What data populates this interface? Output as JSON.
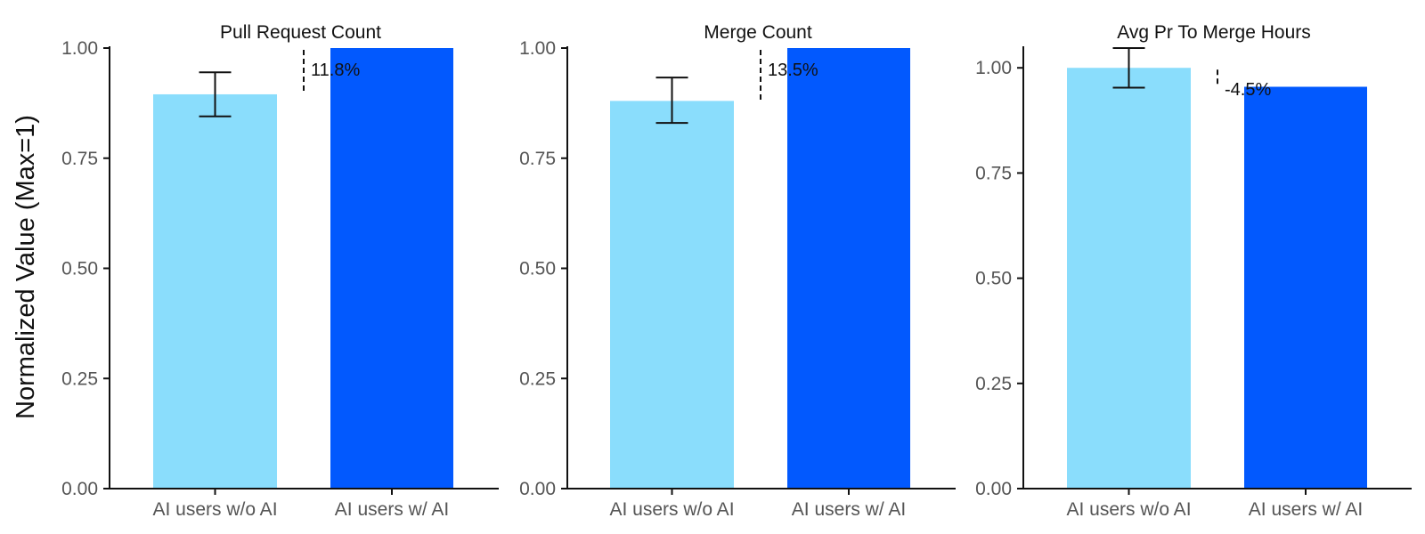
{
  "figure": {
    "ylabel": "Normalized Value (Max=1)"
  },
  "colors": {
    "without_ai": "#8addfc",
    "with_ai": "#0259fe",
    "axis": "#111111",
    "tick_text": "#555555"
  },
  "chart_data": [
    {
      "type": "bar",
      "title": "Pull Request Count",
      "categories": [
        "AI users w/o AI",
        "AI users w/ AI"
      ],
      "values": [
        0.895,
        1.0
      ],
      "error_bars": [
        [
          0.845,
          0.945
        ],
        null
      ],
      "ylim": [
        0,
        1.0
      ],
      "yticks": [
        "0.00",
        "0.25",
        "0.50",
        "0.75",
        "1.00"
      ],
      "ytick_values": [
        0,
        0.25,
        0.5,
        0.75,
        1.0
      ],
      "annotation": "11.8%",
      "grid": false
    },
    {
      "type": "bar",
      "title": "Merge Count",
      "categories": [
        "AI users w/o AI",
        "AI users w/ AI"
      ],
      "values": [
        0.88,
        1.0
      ],
      "error_bars": [
        [
          0.83,
          0.933
        ],
        null
      ],
      "ylim": [
        0,
        1.0
      ],
      "yticks": [
        "0.00",
        "0.25",
        "0.50",
        "0.75",
        "1.00"
      ],
      "ytick_values": [
        0,
        0.25,
        0.5,
        0.75,
        1.0
      ],
      "annotation": "13.5%",
      "grid": false
    },
    {
      "type": "bar",
      "title": "Avg Pr To Merge Hours",
      "categories": [
        "AI users w/o AI",
        "AI users w/ AI"
      ],
      "values": [
        1.0,
        0.955
      ],
      "error_bars": [
        [
          0.953,
          1.047
        ],
        null
      ],
      "ylim": [
        0,
        1.047
      ],
      "yticks": [
        "0.00",
        "0.25",
        "0.50",
        "0.75",
        "1.00"
      ],
      "ytick_values": [
        0,
        0.25,
        0.5,
        0.75,
        1.0
      ],
      "annotation": "-4.5%",
      "grid": false
    }
  ]
}
